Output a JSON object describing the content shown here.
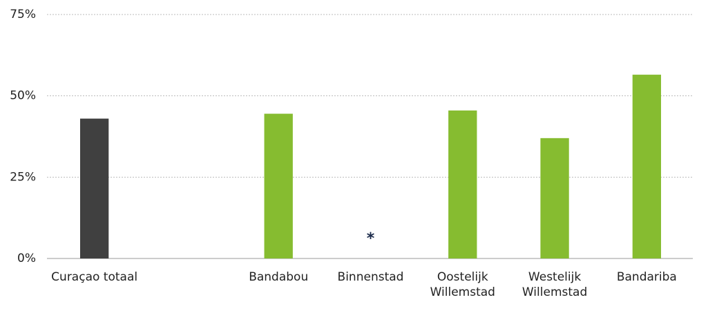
{
  "chart_data": {
    "type": "bar",
    "categories": [
      "Curaçao totaal",
      null,
      "Bandabou",
      "Binnenstad",
      "Oostelijk Willemstad",
      "Westelijk Willemstad",
      "Bandariba"
    ],
    "values": [
      43,
      null,
      44.5,
      null,
      45.5,
      37,
      56.5
    ],
    "colors": [
      "#404040",
      null,
      "#86bc30",
      null,
      "#86bc30",
      "#86bc30",
      "#86bc30"
    ],
    "annotation": {
      "category": 3,
      "text": "*"
    },
    "ylim": [
      0,
      75
    ],
    "yticks": [
      {
        "value": 0,
        "label": "0%"
      },
      {
        "value": 25,
        "label": "25%"
      },
      {
        "value": 50,
        "label": "50%"
      },
      {
        "value": 75,
        "label": "75%"
      }
    ],
    "grid": true
  }
}
